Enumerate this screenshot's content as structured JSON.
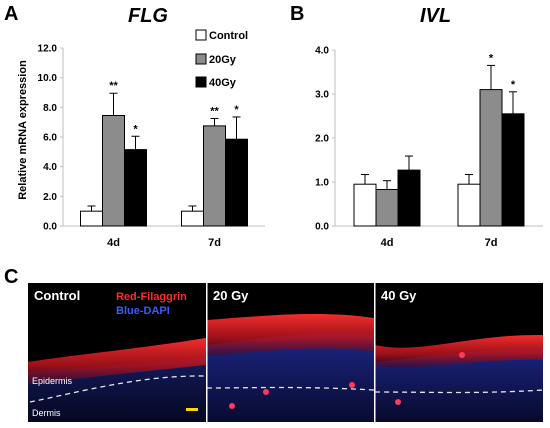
{
  "panels": {
    "a": "A",
    "b": "B",
    "c": "C"
  },
  "colors": {
    "control": "#ffffff",
    "gy20": "#8c8c8c",
    "gy40": "#000000",
    "red_stain": "#e0202a",
    "blue_stain": "#1e2a9a"
  },
  "legend": [
    "Control",
    "20Gy",
    "40Gy"
  ],
  "chart_data": [
    {
      "type": "bar",
      "title": "FLG",
      "ylabel": "Relative mRNA expression",
      "xlabel": "",
      "categories": [
        "4d",
        "7d"
      ],
      "ylim": [
        0,
        12
      ],
      "yticks": [
        "0.0",
        "2.0",
        "4.0",
        "6.0",
        "8.0",
        "10.0",
        "12.0"
      ],
      "series": [
        {
          "name": "Control",
          "values": [
            1.0,
            1.0
          ],
          "errors": [
            0.35,
            0.35
          ],
          "sig": [
            "",
            ""
          ]
        },
        {
          "name": "20Gy",
          "values": [
            7.45,
            6.75
          ],
          "errors": [
            1.5,
            0.5
          ],
          "sig": [
            "**",
            "**"
          ]
        },
        {
          "name": "40Gy",
          "values": [
            5.15,
            5.85
          ],
          "errors": [
            0.9,
            1.5
          ],
          "sig": [
            "*",
            "*"
          ]
        }
      ]
    },
    {
      "type": "bar",
      "title": "IVL",
      "ylabel": "",
      "xlabel": "",
      "categories": [
        "4d",
        "7d"
      ],
      "ylim": [
        0,
        4
      ],
      "yticks": [
        "0.0",
        "1.0",
        "2.0",
        "3.0",
        "4.0"
      ],
      "series": [
        {
          "name": "Control",
          "values": [
            0.95,
            0.95
          ],
          "errors": [
            0.22,
            0.22
          ],
          "sig": [
            "",
            ""
          ]
        },
        {
          "name": "20Gy",
          "values": [
            0.83,
            3.1
          ],
          "errors": [
            0.2,
            0.55
          ],
          "sig": [
            "",
            "*"
          ]
        },
        {
          "name": "40Gy",
          "values": [
            1.27,
            2.55
          ],
          "errors": [
            0.32,
            0.5
          ],
          "sig": [
            "",
            "*"
          ]
        }
      ]
    }
  ],
  "micrographs": {
    "red_label": "Red-Filaggrin",
    "blue_label": "Blue-DAPI",
    "panels": [
      "Control",
      "20 Gy",
      "40 Gy"
    ],
    "epidermis": "Epidermis",
    "dermis": "Dermis"
  }
}
